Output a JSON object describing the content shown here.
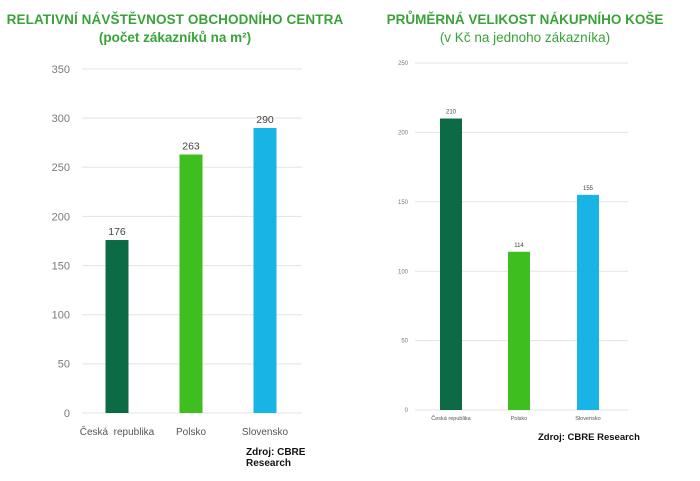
{
  "chart_data": [
    {
      "type": "bar",
      "title": "RELATIVNÍ NÁVŠTĚVNOST OBCHODNÍHO CENTRA",
      "subtitle": "(počet zákazníků na m²)",
      "categories": [
        "Česká  republika",
        "Polsko",
        "Slovensko"
      ],
      "values": [
        176,
        263,
        290
      ],
      "data_labels": [
        "176",
        "263",
        "290"
      ],
      "colors": [
        "#0c6b45",
        "#3fbf1f",
        "#19b4e6"
      ],
      "ylim": [
        0,
        350
      ],
      "yticks": [
        0,
        50,
        100,
        150,
        200,
        250,
        300,
        350
      ],
      "grid": true,
      "source": "Zdroj: CBRE Research"
    },
    {
      "type": "bar",
      "title": "PRŮMĚRNÁ VELIKOST NÁKUPNÍHO KOŠE",
      "subtitle": "(v Kč na jednoho zákazníka)",
      "categories": [
        "Česká republika",
        "Polsko",
        "Slovensko"
      ],
      "values": [
        210,
        114,
        155
      ],
      "data_labels": [
        "210",
        "114",
        "155"
      ],
      "colors": [
        "#0c6b45",
        "#3fbf1f",
        "#19b4e6"
      ],
      "ylim": [
        0,
        250
      ],
      "yticks": [
        0,
        50,
        100,
        150,
        200,
        250
      ],
      "grid": true,
      "source": "Zdroj: CBRE Research"
    }
  ]
}
